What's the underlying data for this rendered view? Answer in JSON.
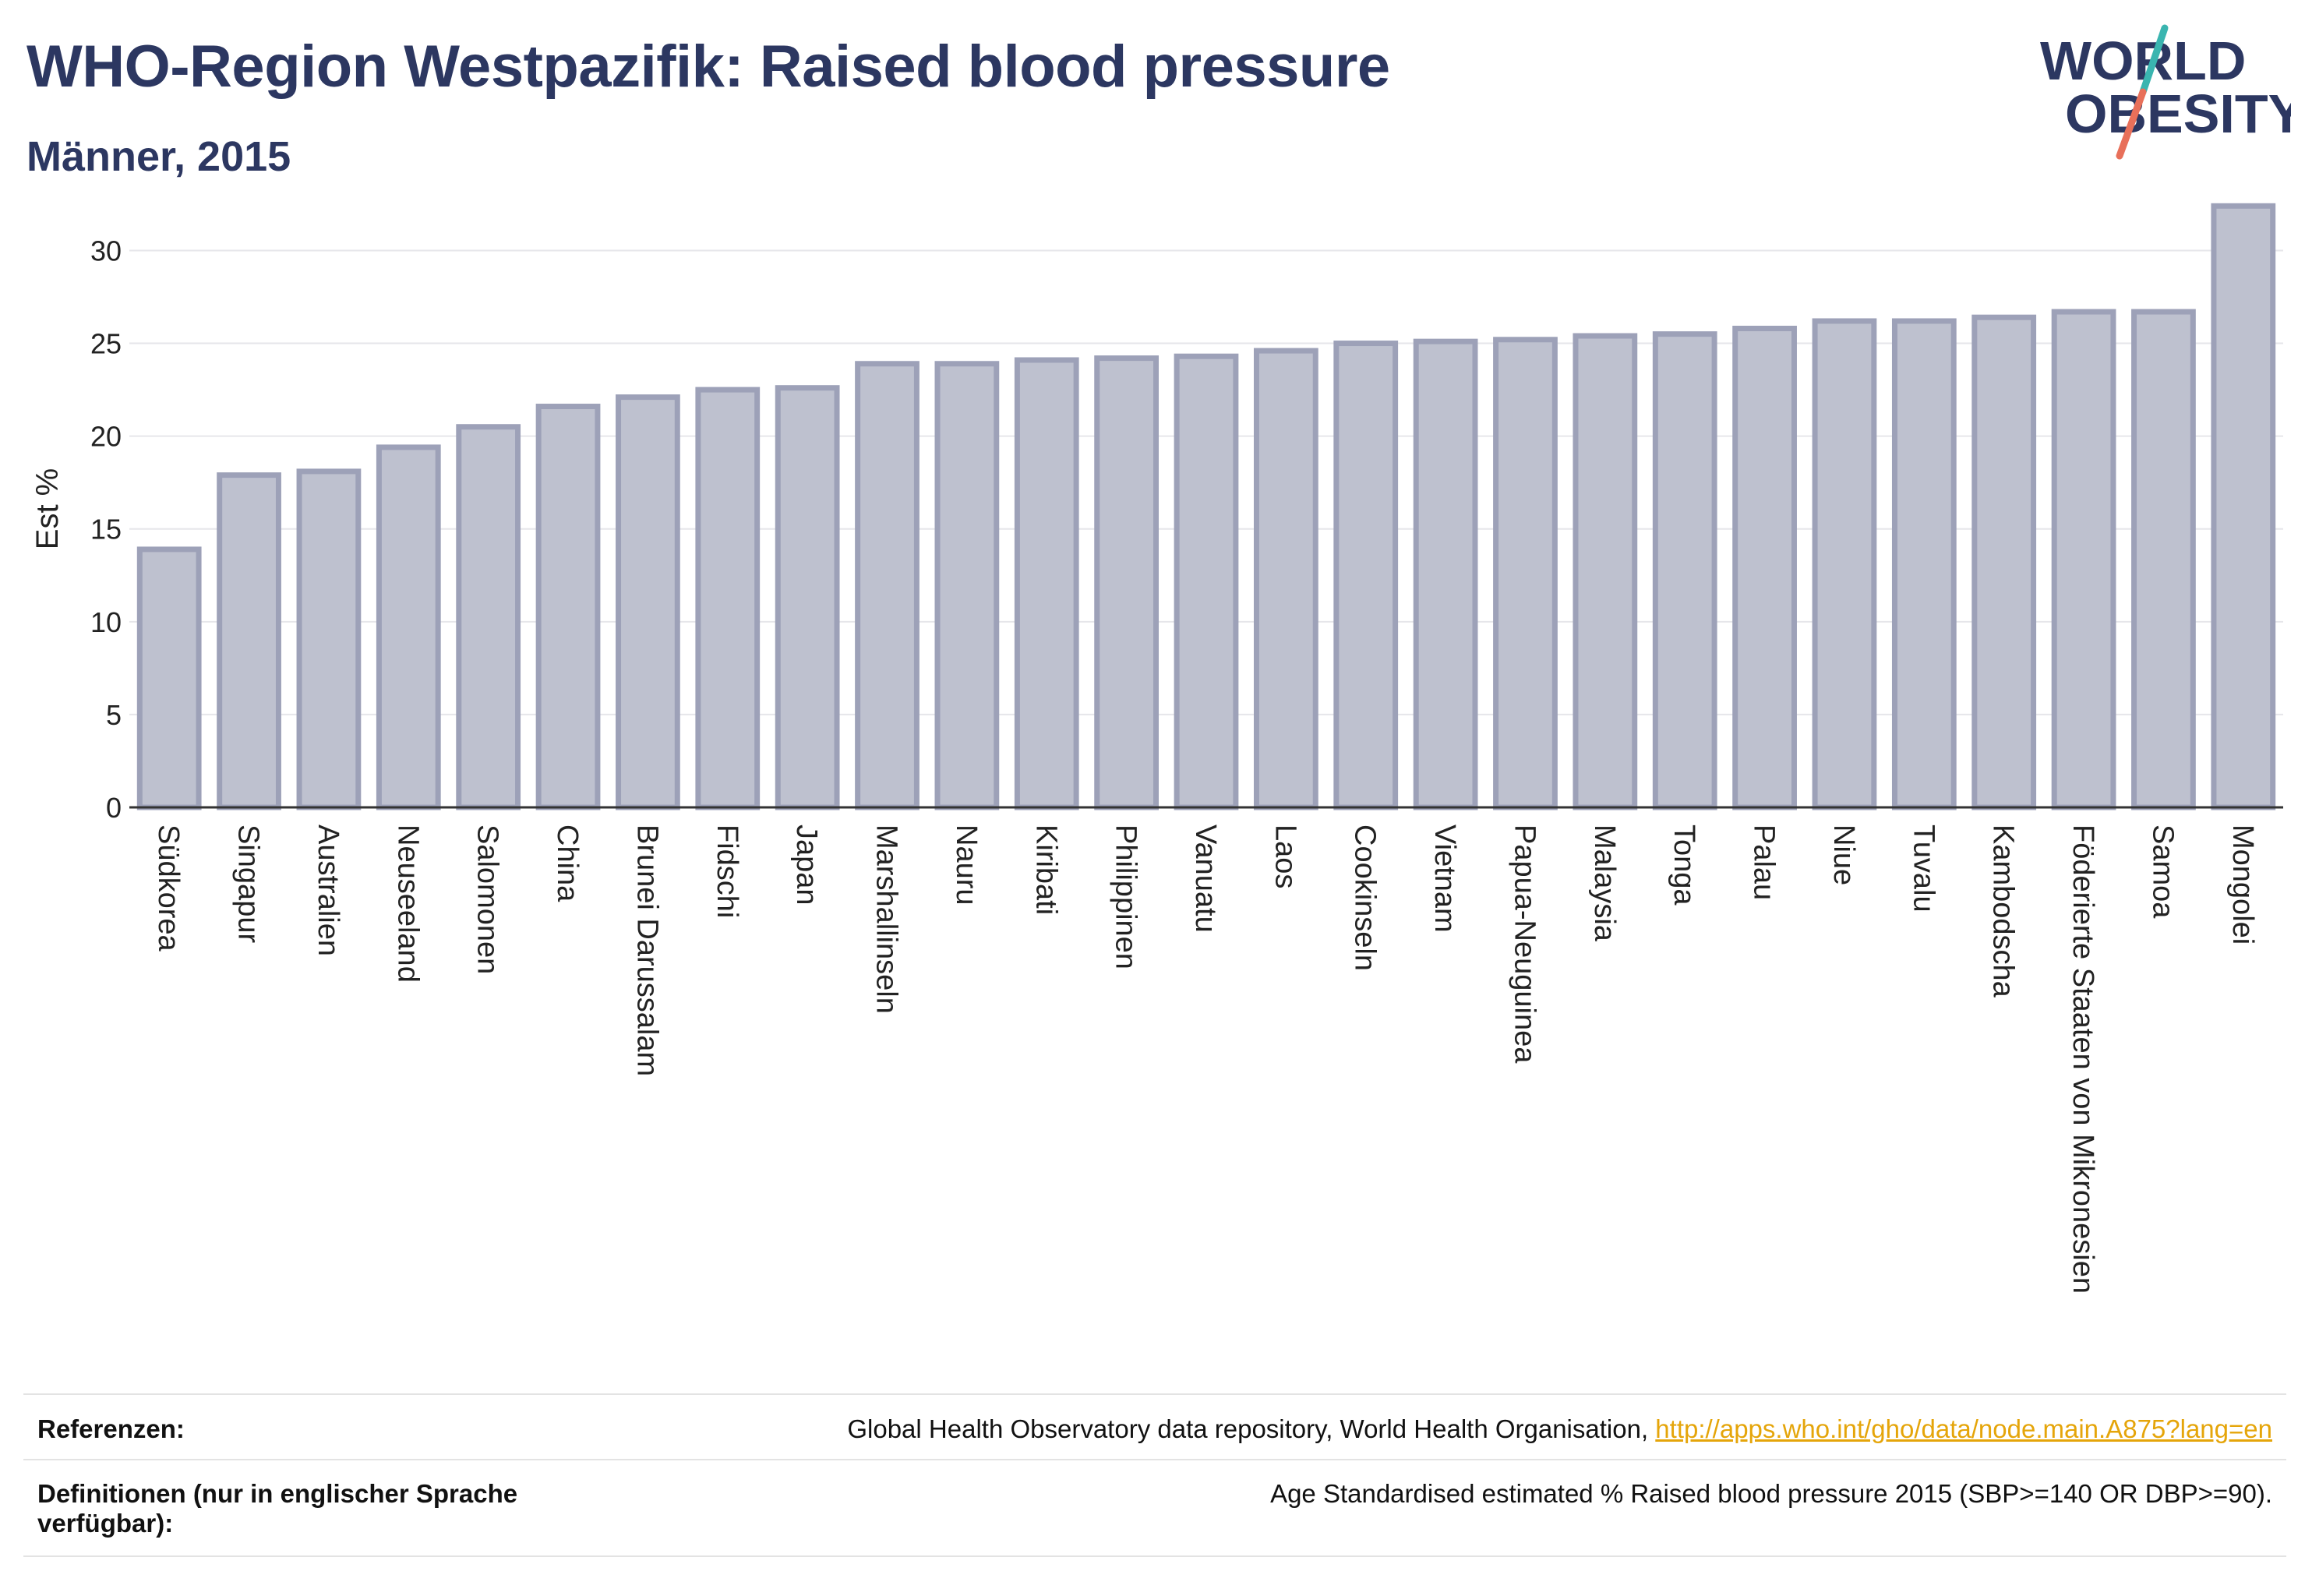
{
  "header": {
    "title": "WHO-Region Westpazifik: Raised blood pressure",
    "subtitle": "Männer, 2015"
  },
  "logo": {
    "line1": "WORLD",
    "line2": "OBESITY"
  },
  "chart_data": {
    "type": "bar",
    "ylabel": "Est %",
    "ylim": [
      0,
      33
    ],
    "yticks": [
      0,
      5,
      10,
      15,
      20,
      25,
      30
    ],
    "grid": true,
    "categories": [
      "Südkorea",
      "Singapur",
      "Australien",
      "Neuseeland",
      "Salomonen",
      "China",
      "Brunei Darussalam",
      "Fidschi",
      "Japan",
      "Marshallinseln",
      "Nauru",
      "Kiribati",
      "Philippinen",
      "Vanuatu",
      "Laos",
      "Cookinseln",
      "Vietnam",
      "Papua-Neuguinea",
      "Malaysia",
      "Tonga",
      "Palau",
      "Niue",
      "Tuvalu",
      "Kambodscha",
      "Föderierte Staaten von Mikronesien",
      "Samoa",
      "Mongolei"
    ],
    "values": [
      13.9,
      17.9,
      18.1,
      19.4,
      20.5,
      21.6,
      22.1,
      22.5,
      22.6,
      23.9,
      23.9,
      24.1,
      24.2,
      24.3,
      24.6,
      25.0,
      25.1,
      25.2,
      25.4,
      25.5,
      25.8,
      26.2,
      26.2,
      26.4,
      26.7,
      26.7,
      32.4
    ],
    "bar_fill": "#bec1cf",
    "bar_stroke": "#9da1b8"
  },
  "footer": {
    "ref_label": "Referenzen:",
    "ref_text": "Global Health Observatory data repository, World Health Organisation, ",
    "ref_link": "http://apps.who.int/gho/data/node.main.A875?lang=en",
    "def_label_1": "Definitionen (nur in englischer Sprache",
    "def_label_2": "verfügbar):",
    "def_text": "Age Standardised estimated % Raised blood pressure 2015 (SBP>=140 OR DBP>=90)."
  },
  "colors": {
    "title": "#2c3761",
    "logo_teal": "#3ab5b0",
    "logo_coral": "#e8705a",
    "link": "#e5a50a"
  }
}
